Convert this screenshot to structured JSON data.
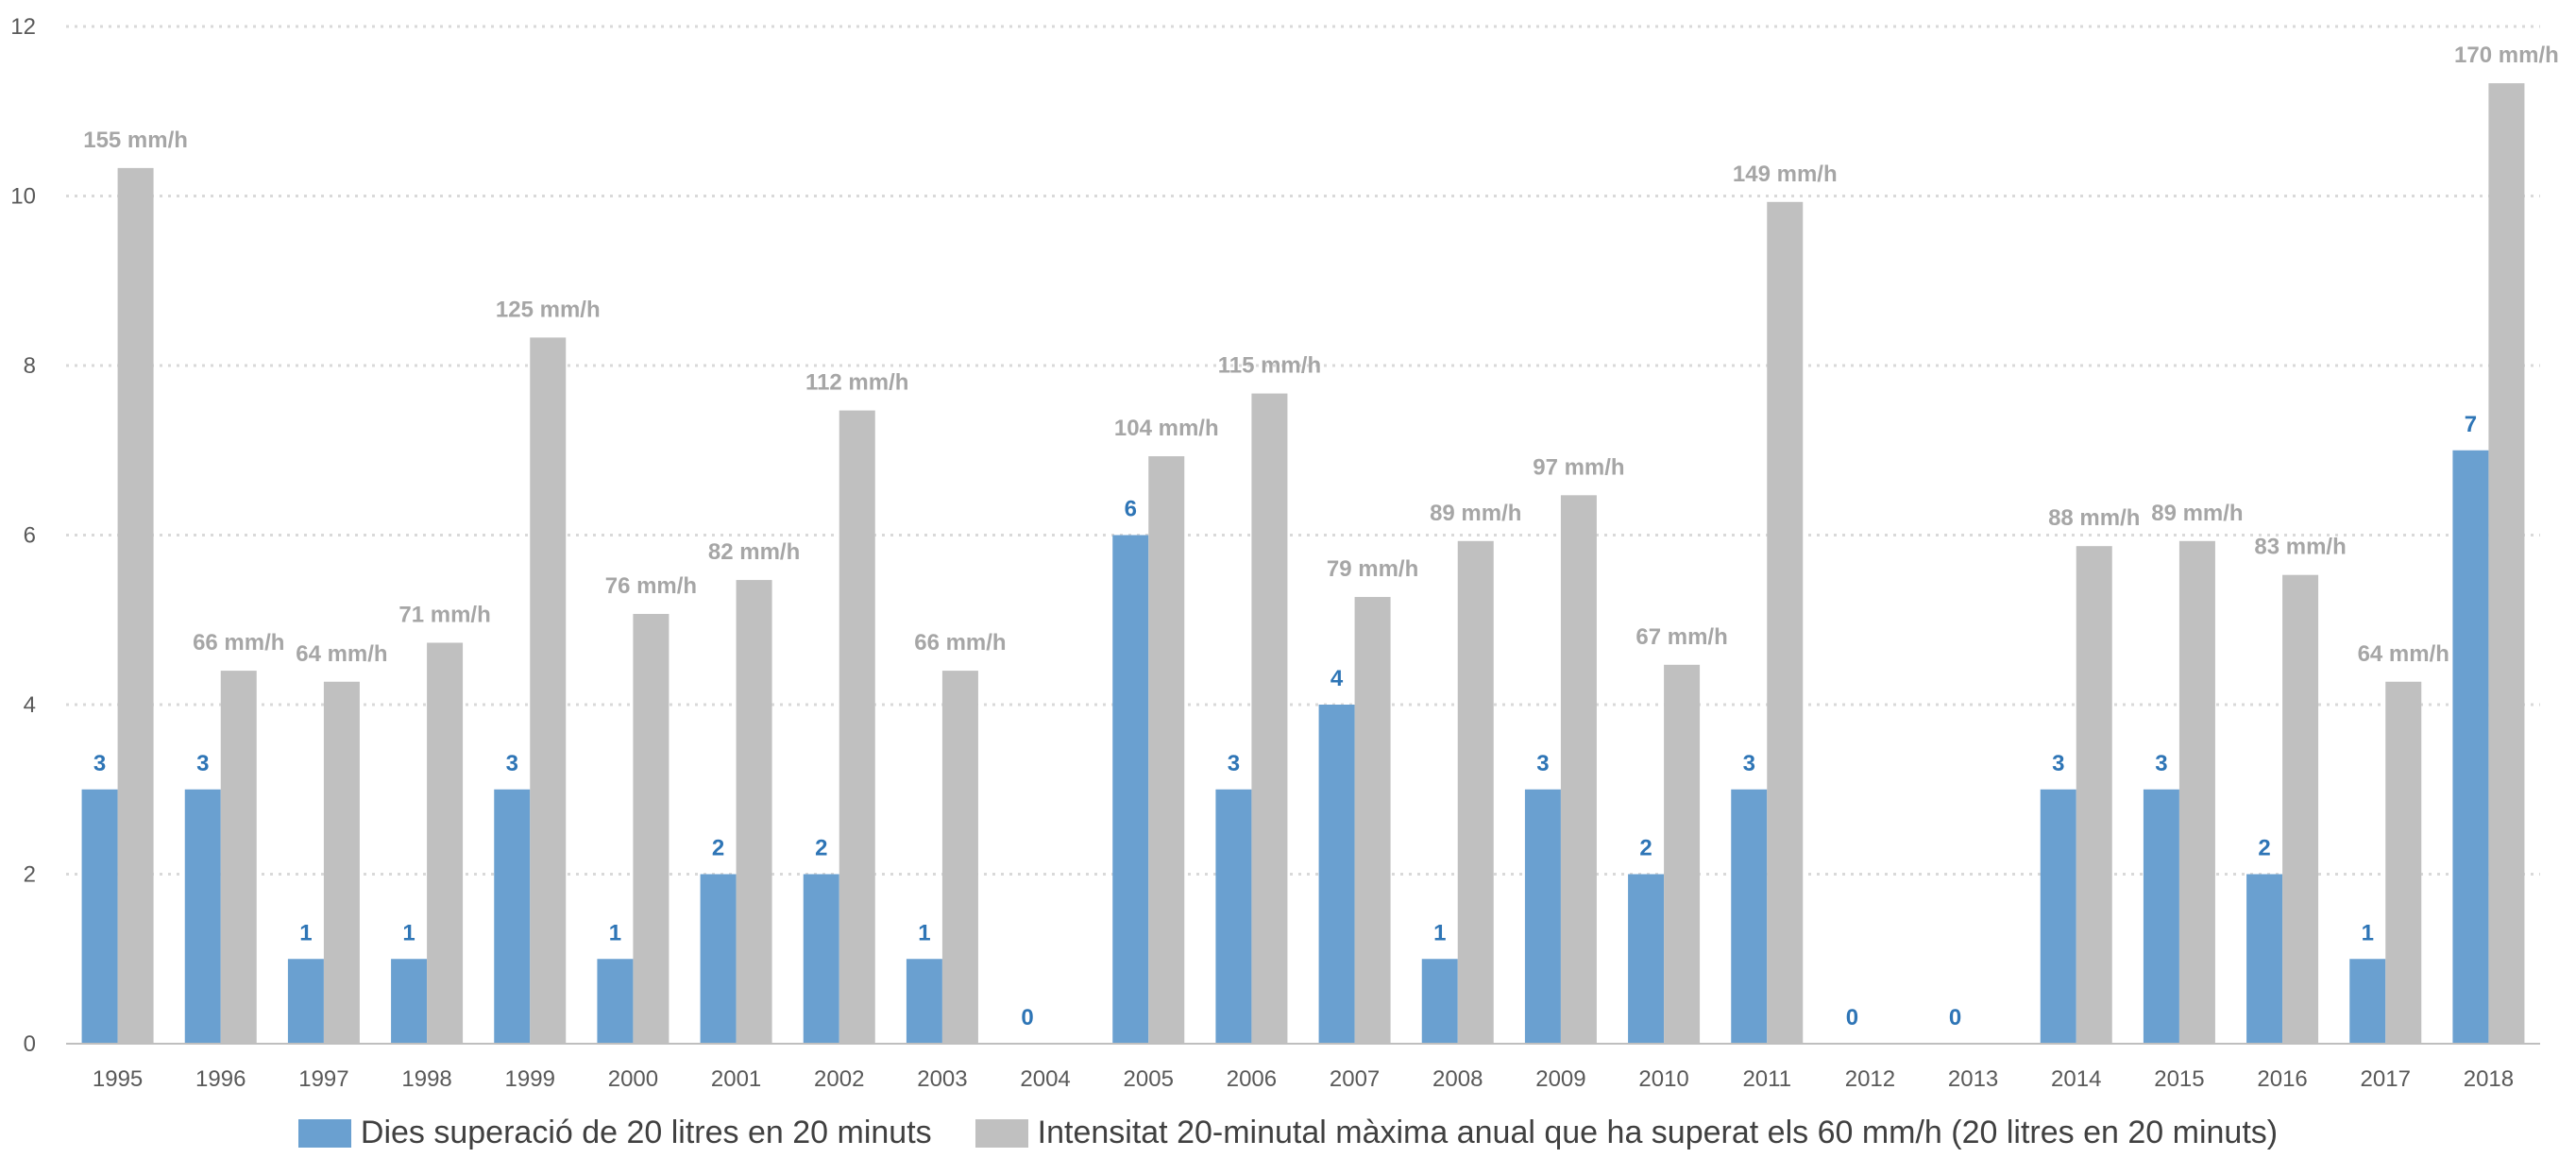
{
  "colors": {
    "series1": "#6aa0d0",
    "series2": "#c0c0c0",
    "label1": "#2e75b6",
    "label2": "#a6a6a6",
    "grid": "#d9d9d9",
    "axis": "#bfbfbf"
  },
  "chart_data": {
    "type": "bar",
    "categories": [
      "1995",
      "1996",
      "1997",
      "1998",
      "1999",
      "2000",
      "2001",
      "2002",
      "2003",
      "2004",
      "2005",
      "2006",
      "2007",
      "2008",
      "2009",
      "2010",
      "2011",
      "2012",
      "2013",
      "2014",
      "2015",
      "2016",
      "2017",
      "2018"
    ],
    "ylim": [
      0,
      12
    ],
    "yticks": [
      0,
      2,
      4,
      6,
      8,
      10,
      12
    ],
    "grid": true,
    "legend_position": "bottom",
    "series": [
      {
        "name": "Dies superació de 20 litres en 20 minuts",
        "values": [
          3,
          3,
          1,
          1,
          3,
          1,
          2,
          2,
          1,
          0,
          6,
          3,
          4,
          1,
          3,
          2,
          3,
          0,
          0,
          3,
          3,
          2,
          1,
          7
        ],
        "labels": [
          "3",
          "3",
          "1",
          "1",
          "3",
          "1",
          "2",
          "2",
          "1",
          "0",
          "6",
          "3",
          "4",
          "1",
          "3",
          "2",
          "3",
          "0",
          "0",
          "3",
          "3",
          "2",
          "1",
          "7"
        ]
      },
      {
        "name": "Intensitat 20-minutal màxima anual que ha superat els 60 mm/h (20 litres en 20 minuts)",
        "values": [
          10.33,
          4.4,
          4.27,
          4.73,
          8.33,
          5.07,
          5.47,
          7.47,
          4.4,
          null,
          6.93,
          7.67,
          5.27,
          5.93,
          6.47,
          4.47,
          9.93,
          null,
          null,
          5.87,
          5.93,
          5.53,
          4.27,
          11.33
        ],
        "labels": [
          "155 mm/h",
          "66 mm/h",
          "64 mm/h",
          "71 mm/h",
          "125 mm/h",
          "76 mm/h",
          "82 mm/h",
          "112 mm/h",
          "66 mm/h",
          null,
          "104 mm/h",
          "115 mm/h",
          "79 mm/h",
          "89 mm/h",
          "97 mm/h",
          "67 mm/h",
          "149 mm/h",
          null,
          null,
          "88 mm/h",
          "89 mm/h",
          "83 mm/h",
          "64 mm/h",
          "170 mm/h"
        ]
      }
    ]
  }
}
